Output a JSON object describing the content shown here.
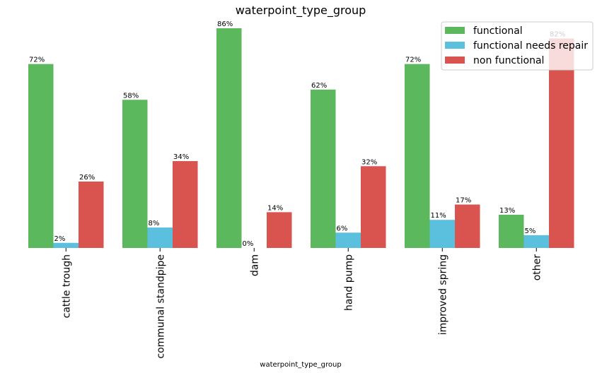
{
  "chart_data": {
    "type": "bar",
    "title": "waterpoint_type_group",
    "xlabel": "waterpoint_type_group",
    "ylabel": "",
    "ylim": [
      0,
      86
    ],
    "grid": false,
    "legend_position": "top-right",
    "categories": [
      "cattle trough",
      "communal standpipe",
      "dam",
      "hand pump",
      "improved spring",
      "other"
    ],
    "series": [
      {
        "name": "functional",
        "color": "#5cb85c",
        "values": [
          72,
          58,
          86,
          62,
          72,
          13
        ],
        "labels": [
          "72%",
          "58%",
          "86%",
          "62%",
          "72%",
          "13%"
        ]
      },
      {
        "name": "functional needs repair",
        "color": "#5bc0de",
        "values": [
          2,
          8,
          0,
          6,
          11,
          5
        ],
        "labels": [
          "2%",
          "8%",
          "0%",
          "6%",
          "11%",
          "5%"
        ]
      },
      {
        "name": "non functional",
        "color": "#d9534f",
        "values": [
          26,
          34,
          14,
          32,
          17,
          82
        ],
        "labels": [
          "26%",
          "34%",
          "14%",
          "32%",
          "17%",
          "82%"
        ]
      }
    ]
  }
}
